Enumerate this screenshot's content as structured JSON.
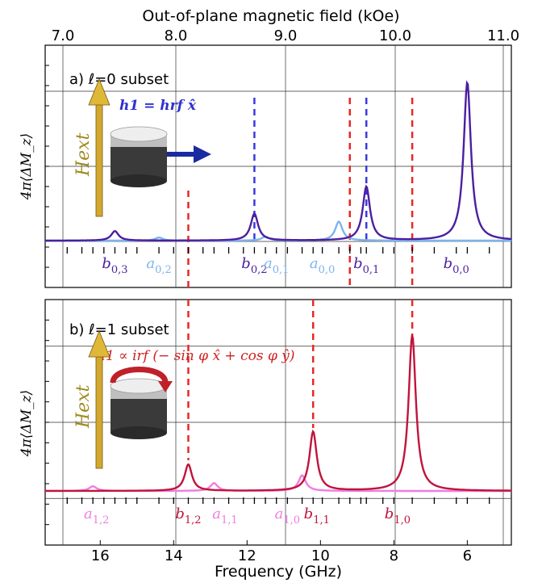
{
  "chart_data": {
    "type": "line",
    "top_axis": {
      "label": "Out-of-plane magnetic field (kOe)",
      "ticks": [
        "7.0",
        "8.0",
        "9.0",
        "10.0",
        "11.0"
      ]
    },
    "x_axis": {
      "label": "Frequency (GHz)",
      "range": [
        17.5,
        4.8
      ],
      "ticks": [
        16,
        14,
        12,
        10,
        8,
        6
      ]
    },
    "ylabel": "4π⟨ΔM_z⟩",
    "grid": true,
    "panels": [
      {
        "label": "a) ℓ=0 subset",
        "excitation": "h1 = hrf x̂",
        "field_label": "Hext",
        "ylim": [
          0,
          1.1
        ],
        "series": [
          {
            "color": "#4b1fa0",
            "peaks": [
              [
                15.6,
                0.06
              ],
              [
                11.8,
                0.17
              ],
              [
                8.75,
                0.34
              ],
              [
                6.0,
                1.0
              ]
            ]
          },
          {
            "color": "#7db4ee",
            "peaks": [
              [
                14.4,
                0.02
              ],
              [
                11.5,
                0.025
              ],
              [
                9.5,
                0.12
              ]
            ]
          }
        ],
        "dashed_lines": [
          {
            "x": 11.8,
            "color": "#3a3adf"
          },
          {
            "x": 9.2,
            "color": "#e82828"
          },
          {
            "x": 8.75,
            "color": "#3a3adf"
          },
          {
            "x": 7.5,
            "color": "#e82828"
          },
          {
            "x": 13.6,
            "color": "#e82828"
          }
        ],
        "mode_labels": [
          {
            "text": "b",
            "sub": "0,3",
            "x": 15.6,
            "color": "#4b1fa0"
          },
          {
            "text": "a",
            "sub": "0,2",
            "x": 14.4,
            "color": "#7db4ee"
          },
          {
            "text": "b",
            "sub": "0,2",
            "x": 11.8,
            "color": "#4b1fa0"
          },
          {
            "text": "a",
            "sub": "0,1",
            "x": 11.2,
            "color": "#7db4ee"
          },
          {
            "text": "a",
            "sub": "0,0",
            "x": 9.95,
            "color": "#7db4ee"
          },
          {
            "text": "b",
            "sub": "0,1",
            "x": 8.75,
            "color": "#4b1fa0"
          },
          {
            "text": "b",
            "sub": "0,0",
            "x": 6.3,
            "color": "#4b1fa0"
          }
        ]
      },
      {
        "label": "b) ℓ=1 subset",
        "excitation": "h1 ∝ irf (− sin φ x̂ + cos φ ŷ)",
        "field_label": "Hext",
        "ylim": [
          0,
          1.1
        ],
        "series": [
          {
            "color": "#c0143c",
            "peaks": [
              [
                13.6,
                0.17
              ],
              [
                10.2,
                0.38
              ],
              [
                7.5,
                1.0
              ]
            ]
          },
          {
            "color": "#f07ce0",
            "peaks": [
              [
                16.2,
                0.03
              ],
              [
                12.9,
                0.05
              ],
              [
                10.5,
                0.1
              ]
            ]
          }
        ],
        "dashed_lines": [
          {
            "x": 13.6,
            "color": "#e82828"
          },
          {
            "x": 10.2,
            "color": "#e82828"
          },
          {
            "x": 7.5,
            "color": "#e82828"
          }
        ],
        "mode_labels": [
          {
            "text": "a",
            "sub": "1,2",
            "x": 16.1,
            "color": "#f07ce0"
          },
          {
            "text": "b",
            "sub": "1,2",
            "x": 13.6,
            "color": "#c0143c"
          },
          {
            "text": "a",
            "sub": "1,1",
            "x": 12.6,
            "color": "#f07ce0"
          },
          {
            "text": "a",
            "sub": "1,0",
            "x": 10.9,
            "color": "#f07ce0"
          },
          {
            "text": "b",
            "sub": "1,1",
            "x": 10.1,
            "color": "#c0143c"
          },
          {
            "text": "b",
            "sub": "1,0",
            "x": 7.9,
            "color": "#c0143c"
          }
        ]
      }
    ],
    "tick_marks_freq": [
      16.9,
      16.5,
      16.2,
      15.9,
      15.6,
      15.3,
      15.0,
      14.4,
      14.0,
      13.6,
      13.2,
      12.9,
      12.5,
      12.1,
      11.8,
      11.5,
      11.2,
      10.9,
      10.5,
      10.2,
      9.95,
      9.5,
      9.2,
      8.9,
      8.75,
      8.3,
      8.0,
      7.5,
      6.9,
      6.3,
      6.0,
      5.4
    ]
  }
}
